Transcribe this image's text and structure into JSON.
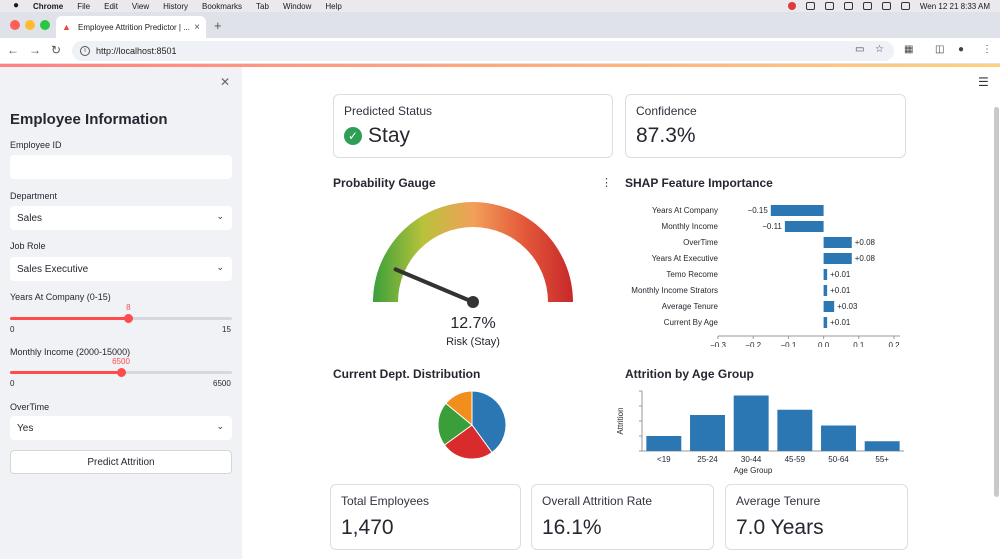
{
  "menubar": {
    "app": "Chrome",
    "menus": [
      "File",
      "Edit",
      "View",
      "History",
      "Bookmarks",
      "Tab",
      "Window",
      "Help"
    ],
    "clock": "Wen 12 21  8:33 AM"
  },
  "browser": {
    "tab_title": "Employee Attrition Predictor | ...",
    "url": "http://localhost:8501"
  },
  "sidebar": {
    "title": "Employee Information",
    "employee_id": {
      "label": "Employee ID",
      "value": ""
    },
    "department": {
      "label": "Department",
      "value": "Sales"
    },
    "job_role": {
      "label": "Job Role",
      "value": "Sales Executive"
    },
    "years_at_company": {
      "label": "Years At Company (0-15)",
      "value": "8",
      "min": "0",
      "max": "15",
      "fraction": 0.533
    },
    "monthly_income": {
      "label": "Monthly Income (2000-15000)",
      "value": "6500",
      "min": "0",
      "max": "6500",
      "fraction": 0.5
    },
    "overtime": {
      "label": "OverTime",
      "value": "Yes"
    },
    "predict_button": "Predict Attrition"
  },
  "metrics": {
    "predicted_status": {
      "label": "Predicted Status",
      "value": "Stay"
    },
    "confidence": {
      "label": "Confidence",
      "value": "87.3%"
    },
    "total_employees": {
      "label": "Total Employees",
      "value": "1,470"
    },
    "overall_attrition": {
      "label": "Overall Attrition Rate",
      "value": "16.1%"
    },
    "average_tenure": {
      "label": "Average Tenure",
      "value": "7.0 Years"
    }
  },
  "colors": {
    "accent": "#ff4b4b",
    "bar_blue": "#2a77b4",
    "success_green": "#2e9e57",
    "pie": [
      "#2a77b4",
      "#d92b2b",
      "#3a9e3a",
      "#f28e1c"
    ]
  },
  "gauge": {
    "title": "Probability Gauge",
    "value_text": "12.7%",
    "sub_text": "Risk (Stay)",
    "value": 0.127
  },
  "sections": {
    "shap_title": "SHAP Feature Importance",
    "dept_title": "Current Dept. Distribution",
    "age_title": "Attrition by Age Group"
  },
  "chart_data": [
    {
      "type": "bar",
      "orientation": "horizontal",
      "title": "SHAP Feature Importance",
      "categories": [
        "Years At Company",
        "Monthly Income",
        "OverTime",
        "Years At Executive",
        "Temo Recome",
        "Monthly Income Strators",
        "Average Tenure",
        "Current By Age"
      ],
      "values": [
        -0.15,
        -0.11,
        0.08,
        0.08,
        0.01,
        0.01,
        0.03,
        0.01
      ],
      "value_labels": [
        "−0.15",
        "−0.11",
        "+0.08",
        "+0.08",
        "+0.01",
        "+0.01",
        "+0.03",
        "+0.01"
      ],
      "xlim": [
        -0.3,
        0.2
      ],
      "xticks": [
        -0.3,
        -0.2,
        -0.1,
        0.0,
        0.1,
        0.2
      ],
      "xtick_labels": [
        "−0.3",
        "−0.2",
        "−0.1",
        "0.0",
        "0.1",
        "0.2"
      ]
    },
    {
      "type": "pie",
      "title": "Current Dept. Distribution",
      "values": [
        40,
        25,
        21,
        14
      ]
    },
    {
      "type": "bar",
      "title": "Attrition by Age Group",
      "categories": [
        "<19",
        "25-24",
        "30-44",
        "45-59",
        "50-64",
        "55+"
      ],
      "values": [
        20,
        48,
        74,
        55,
        34,
        13
      ],
      "xlabel": "Age Group",
      "ylabel": "Attrition",
      "ylim": [
        0,
        80
      ]
    }
  ]
}
